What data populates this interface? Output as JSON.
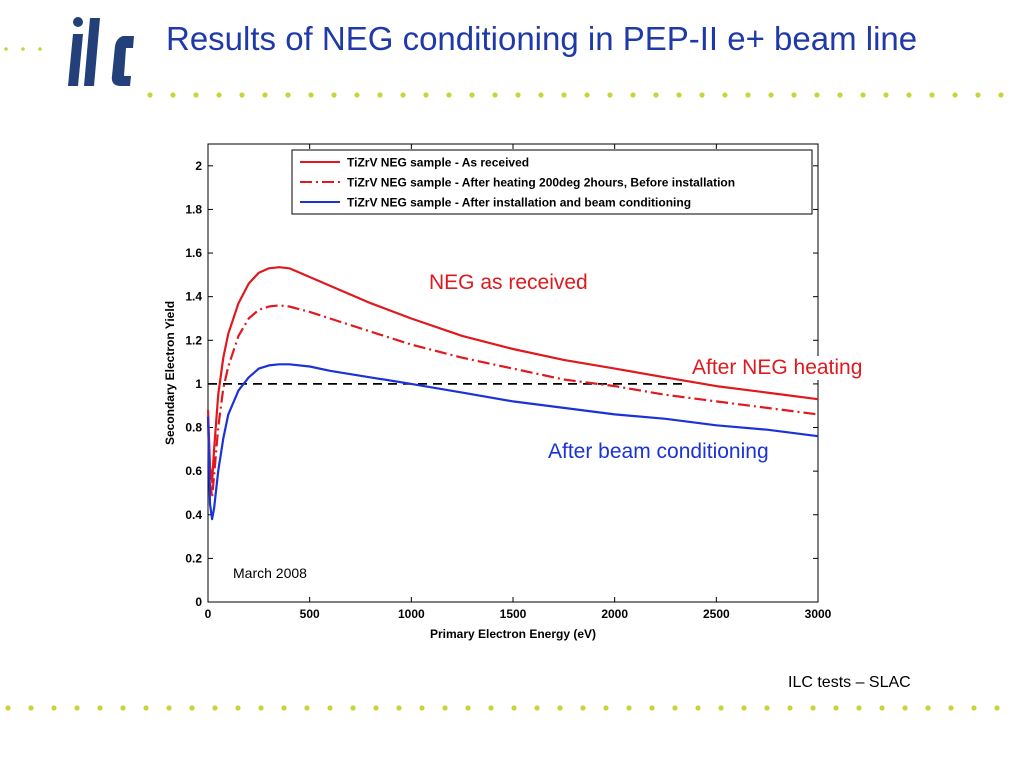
{
  "slide": {
    "title": "Results of NEG conditioning in PEP-II e+ beam line",
    "logo_text": "ilc",
    "footer": "ILC tests – SLAC",
    "colors": {
      "title": "#1f3aa8",
      "logo": "#23407a",
      "dots": "#c9d43a"
    }
  },
  "chart_data": {
    "type": "line",
    "xlabel": "Primary Electron Energy (eV)",
    "ylabel": "Secondary Electron Yield",
    "xlim": [
      0,
      3000
    ],
    "ylim": [
      0,
      2.1
    ],
    "xticks": [
      0,
      500,
      1000,
      1500,
      2000,
      2500,
      3000
    ],
    "yticks": [
      0,
      0.2,
      0.4,
      0.6,
      0.8,
      1,
      1.2,
      1.4,
      1.6,
      1.8,
      2
    ],
    "grid": false,
    "legend_position": "top",
    "series": [
      {
        "name": "TiZrV NEG sample - As received",
        "color": "#e0191e",
        "style": "solid",
        "x": [
          0,
          10,
          20,
          30,
          50,
          75,
          100,
          150,
          200,
          250,
          300,
          350,
          400,
          500,
          600,
          800,
          1000,
          1250,
          1500,
          1750,
          2000,
          2250,
          2500,
          2750,
          3000
        ],
        "y": [
          0.88,
          0.62,
          0.55,
          0.7,
          0.95,
          1.12,
          1.23,
          1.37,
          1.46,
          1.51,
          1.53,
          1.535,
          1.53,
          1.49,
          1.45,
          1.37,
          1.3,
          1.22,
          1.16,
          1.11,
          1.07,
          1.03,
          0.99,
          0.96,
          0.93
        ]
      },
      {
        "name": "TiZrV NEG sample - After heating 200deg 2hours, Before installation",
        "color": "#e0191e",
        "style": "dashdot",
        "x": [
          0,
          10,
          20,
          30,
          50,
          75,
          100,
          150,
          200,
          250,
          300,
          350,
          400,
          500,
          600,
          800,
          1000,
          1250,
          1500,
          1750,
          2000,
          2250,
          2500,
          2750,
          3000
        ],
        "y": [
          0.85,
          0.55,
          0.48,
          0.58,
          0.8,
          0.98,
          1.08,
          1.22,
          1.3,
          1.34,
          1.355,
          1.36,
          1.355,
          1.33,
          1.3,
          1.24,
          1.18,
          1.12,
          1.07,
          1.02,
          0.99,
          0.95,
          0.92,
          0.89,
          0.86
        ]
      },
      {
        "name": "TiZrV NEG sample - After installation and beam conditioning",
        "color": "#1b33d6",
        "style": "solid",
        "x": [
          0,
          10,
          20,
          30,
          50,
          75,
          100,
          150,
          200,
          250,
          300,
          350,
          400,
          500,
          600,
          800,
          1000,
          1250,
          1500,
          1750,
          2000,
          2250,
          2500,
          2750,
          3000
        ],
        "y": [
          0.85,
          0.45,
          0.38,
          0.43,
          0.6,
          0.75,
          0.86,
          0.97,
          1.03,
          1.07,
          1.085,
          1.09,
          1.09,
          1.08,
          1.06,
          1.03,
          1.0,
          0.96,
          0.92,
          0.89,
          0.86,
          0.84,
          0.81,
          0.79,
          0.76
        ]
      }
    ],
    "reference_line": {
      "y": 1,
      "x_range": [
        0,
        2350
      ],
      "color": "#000000",
      "style": "dashed"
    },
    "annotations": {
      "neg_as_received": {
        "text": "NEG as received",
        "color": "#e0191e"
      },
      "after_neg_heating": {
        "text": "After NEG heating",
        "color": "#e0191e"
      },
      "after_beam_conditioning": {
        "text": "After beam conditioning",
        "color": "#1b33d6"
      },
      "date": {
        "text": "March 2008",
        "color": "#000000"
      }
    }
  }
}
